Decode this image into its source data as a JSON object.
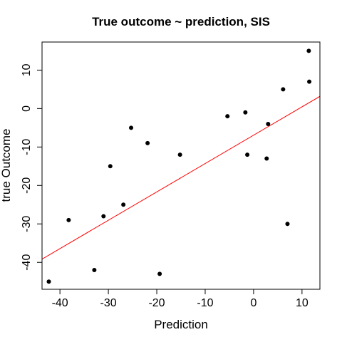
{
  "chart_data": {
    "type": "scatter",
    "title": "True outcome ~ prediction, SIS",
    "xlabel": "Prediction",
    "ylabel": "true Outcome",
    "xlim": [
      -43.7,
      13.7
    ],
    "ylim": [
      -47.0,
      17.3
    ],
    "x_ticks": [
      -40,
      -30,
      -20,
      -10,
      0,
      10
    ],
    "y_ticks": [
      -40,
      -30,
      -20,
      -10,
      0,
      10
    ],
    "x_tick_labels": [
      "-40",
      "-30",
      "-20",
      "-10",
      "0",
      "10"
    ],
    "y_tick_labels": [
      "-40",
      "-30",
      "-20",
      "-10",
      "0",
      "10"
    ],
    "points": [
      {
        "x": -42.3,
        "y": -45
      },
      {
        "x": -38.2,
        "y": -29
      },
      {
        "x": -32.9,
        "y": -42
      },
      {
        "x": -31.0,
        "y": -28
      },
      {
        "x": -29.6,
        "y": -15
      },
      {
        "x": -26.9,
        "y": -25
      },
      {
        "x": -25.3,
        "y": -5
      },
      {
        "x": -21.9,
        "y": -9
      },
      {
        "x": -19.4,
        "y": -43
      },
      {
        "x": -15.2,
        "y": -12
      },
      {
        "x": -5.4,
        "y": -2
      },
      {
        "x": -1.7,
        "y": -1
      },
      {
        "x": -1.3,
        "y": -12
      },
      {
        "x": 2.7,
        "y": -13
      },
      {
        "x": 3.0,
        "y": -4
      },
      {
        "x": 6.1,
        "y": 5
      },
      {
        "x": 7.0,
        "y": -30
      },
      {
        "x": 11.4,
        "y": 15
      },
      {
        "x": 11.5,
        "y": 7
      }
    ],
    "fit_line": {
      "color": "#ff0000",
      "intercept": -6.93,
      "slope": 0.7375
    },
    "point_color": "#000000",
    "grid": false,
    "box": true
  }
}
